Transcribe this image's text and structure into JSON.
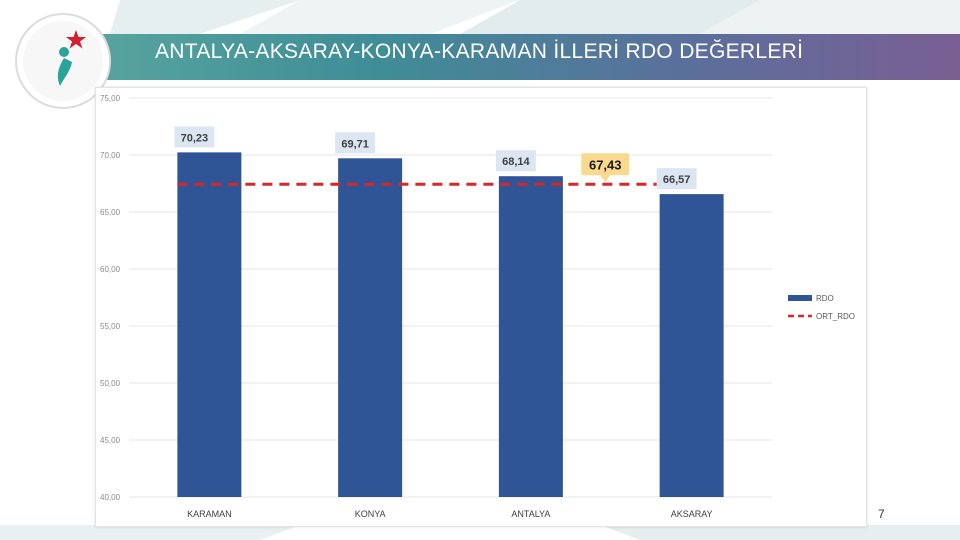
{
  "slide": {
    "title": "ANTALYA-AKSARAY-KONYA-KARAMAN İLLERİ RDO DEĞERLERİ",
    "page_number": "7"
  },
  "colors": {
    "bar": "#2f5597",
    "average_line": "#d9262b",
    "title_gradient_start": "#5aa7a0",
    "title_gradient_end": "#7a5f93",
    "logo_red": "#d1202f",
    "logo_teal": "#2aa39a"
  },
  "chart_data": {
    "type": "bar",
    "categories": [
      "KARAMAN",
      "KONYA",
      "ANTALYA",
      "AKSARAY"
    ],
    "series": [
      {
        "name": "RDO",
        "values": [
          70.23,
          69.71,
          68.14,
          66.57
        ]
      }
    ],
    "value_labels": [
      "70,23",
      "69,71",
      "68,14",
      "66,57"
    ],
    "average": {
      "name": "ORT_RDO",
      "value": 67.43,
      "label": "67,43"
    },
    "y_ticks": [
      40,
      45,
      50,
      55,
      60,
      65,
      70,
      75
    ],
    "y_tick_labels": [
      "40,00",
      "45,00",
      "50,00",
      "55,00",
      "60,00",
      "65,00",
      "70,00",
      "75,00"
    ],
    "ylim": [
      40,
      75
    ],
    "legend": {
      "position": "right",
      "items": [
        "RDO",
        "ORT_RDO"
      ]
    },
    "grid": true
  }
}
